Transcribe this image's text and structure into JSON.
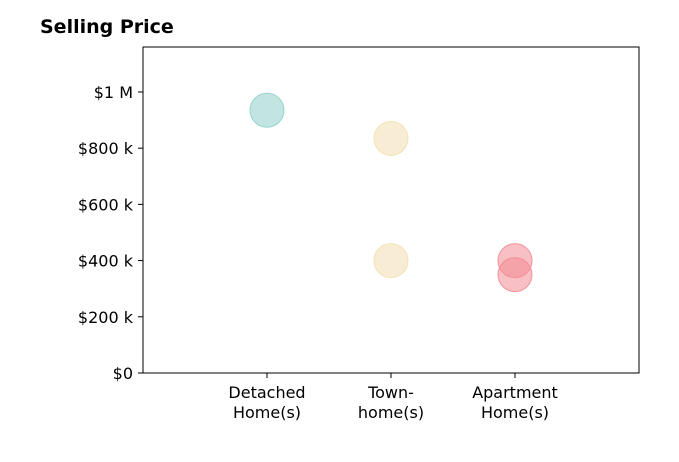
{
  "chart_data": {
    "type": "scatter",
    "title": "Selling Price",
    "xlabel": "",
    "ylabel": "",
    "categories": [
      [
        "Detached",
        "Home(s)"
      ],
      [
        "Town-",
        "home(s)"
      ],
      [
        "Apartment",
        "Home(s)"
      ]
    ],
    "ylim": [
      0,
      1160000
    ],
    "yticks": [
      {
        "value": 0,
        "label": "$0"
      },
      {
        "value": 200000,
        "label": "$200 k"
      },
      {
        "value": 400000,
        "label": "$400 k"
      },
      {
        "value": 600000,
        "label": "$600 k"
      },
      {
        "value": 800000,
        "label": "$800 k"
      },
      {
        "value": 1000000,
        "label": "$1 M"
      }
    ],
    "grid": false,
    "series": [
      {
        "category_index": 0,
        "color": "#8fd0c8",
        "values": [
          935000
        ]
      },
      {
        "category_index": 1,
        "color": "#f3dfb0",
        "values": [
          835000,
          400000
        ]
      },
      {
        "category_index": 2,
        "color": "#f28b93",
        "values": [
          400000,
          350000
        ]
      }
    ]
  }
}
